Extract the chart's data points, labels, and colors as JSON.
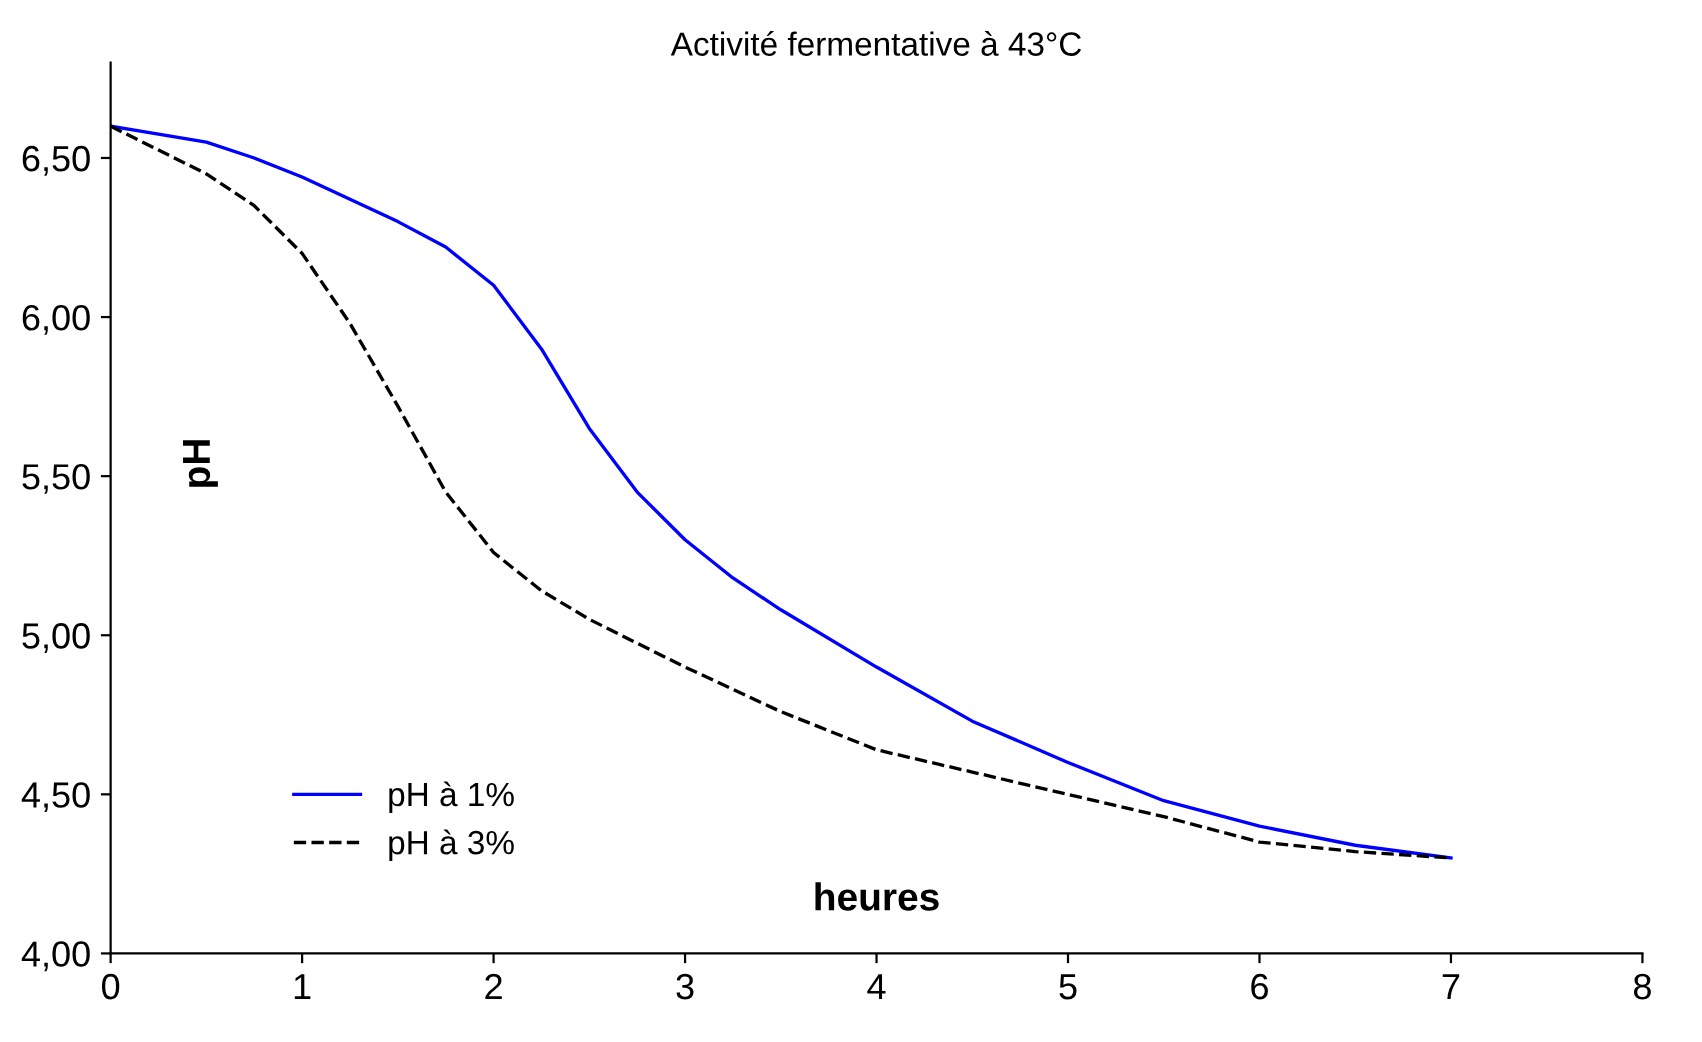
{
  "chart_data": {
    "type": "line",
    "title": "Activité fermentative à 43°C",
    "xlabel": "heures",
    "ylabel": "pH",
    "xlim": [
      0,
      8
    ],
    "xticks": [
      0,
      1,
      2,
      3,
      4,
      5,
      6,
      7,
      8
    ],
    "ylim": [
      4,
      6.8
    ],
    "yticks": [
      {
        "value": 4,
        "label": "4,00"
      },
      {
        "value": 4.5,
        "label": "4,50"
      },
      {
        "value": 5,
        "label": "5,00"
      },
      {
        "value": 5.5,
        "label": "5,50"
      },
      {
        "value": 6,
        "label": "6,00"
      },
      {
        "value": 6.5,
        "label": "6,50"
      }
    ],
    "grid": false,
    "legend": "bottom left",
    "series": [
      {
        "name": "pH à 1%",
        "color": "#0000ff",
        "line_style": "solid",
        "x": [
          0,
          0.5,
          0.75,
          1,
          1.5,
          1.75,
          2,
          2.25,
          2.5,
          2.75,
          3,
          3.25,
          3.5,
          4,
          4.5,
          5,
          5.5,
          6,
          6.5,
          7
        ],
        "values": [
          6.6,
          6.55,
          6.5,
          6.44,
          6.3,
          6.22,
          6.1,
          5.9,
          5.65,
          5.45,
          5.3,
          5.18,
          5.08,
          4.9,
          4.73,
          4.6,
          4.48,
          4.4,
          4.34,
          4.3
        ]
      },
      {
        "name": "pH à 3%",
        "color": "#000000",
        "line_style": "dashed",
        "x": [
          0,
          0.5,
          0.75,
          1,
          1.25,
          1.5,
          1.75,
          2,
          2.25,
          2.5,
          3,
          3.5,
          4,
          4.5,
          5,
          5.5,
          6,
          6.5,
          7
        ],
        "values": [
          6.6,
          6.45,
          6.35,
          6.2,
          5.98,
          5.72,
          5.45,
          5.26,
          5.14,
          5.05,
          4.9,
          4.76,
          4.64,
          4.57,
          4.5,
          4.43,
          4.35,
          4.32,
          4.3
        ]
      }
    ]
  }
}
